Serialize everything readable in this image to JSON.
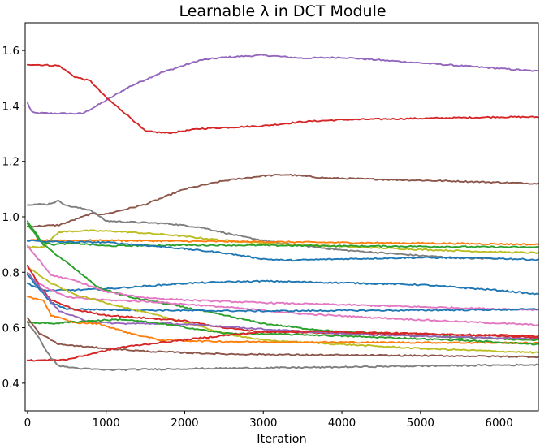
{
  "chart_data": {
    "type": "line",
    "title": "Learnable λ in DCT Module",
    "xlabel": "Iteration",
    "ylabel": "",
    "xlim": [
      -30,
      6500
    ],
    "ylim": [
      0.3,
      1.7
    ],
    "xticks": [
      0,
      1000,
      2000,
      3000,
      4000,
      5000,
      6000
    ],
    "yticks": [
      0.4,
      0.6,
      0.8,
      1.0,
      1.2,
      1.4,
      1.6
    ],
    "ytick_labels": [
      "0.4",
      "0.6",
      "0.8",
      "1.0",
      "1.2",
      "1.4",
      "1.6"
    ],
    "grid": false,
    "legend": "none",
    "series": [
      {
        "name": "purple",
        "color": "#9467bd",
        "points": [
          [
            0,
            1.41
          ],
          [
            60,
            1.375
          ],
          [
            300,
            1.373
          ],
          [
            700,
            1.372
          ],
          [
            1000,
            1.42
          ],
          [
            1300,
            1.47
          ],
          [
            1700,
            1.52
          ],
          [
            2200,
            1.565
          ],
          [
            2500,
            1.575
          ],
          [
            3000,
            1.583
          ],
          [
            3500,
            1.572
          ],
          [
            4000,
            1.575
          ],
          [
            5000,
            1.555
          ],
          [
            6000,
            1.535
          ],
          [
            6500,
            1.525
          ]
        ]
      },
      {
        "name": "red-top",
        "color": "#d62728",
        "points": [
          [
            0,
            1.55
          ],
          [
            400,
            1.545
          ],
          [
            600,
            1.505
          ],
          [
            800,
            1.49
          ],
          [
            1000,
            1.43
          ],
          [
            1300,
            1.36
          ],
          [
            1500,
            1.308
          ],
          [
            1800,
            1.302
          ],
          [
            2200,
            1.318
          ],
          [
            2600,
            1.323
          ],
          [
            3000,
            1.328
          ],
          [
            3500,
            1.343
          ],
          [
            4000,
            1.35
          ],
          [
            5000,
            1.355
          ],
          [
            6000,
            1.36
          ],
          [
            6500,
            1.36
          ]
        ]
      },
      {
        "name": "brown-top",
        "color": "#8c564b",
        "points": [
          [
            0,
            0.965
          ],
          [
            400,
            0.97
          ],
          [
            800,
            1.01
          ],
          [
            1000,
            1.01
          ],
          [
            1500,
            1.045
          ],
          [
            2000,
            1.1
          ],
          [
            2500,
            1.13
          ],
          [
            3000,
            1.148
          ],
          [
            3300,
            1.152
          ],
          [
            3800,
            1.14
          ],
          [
            4500,
            1.135
          ],
          [
            5500,
            1.128
          ],
          [
            6500,
            1.12
          ]
        ]
      },
      {
        "name": "gray-top",
        "color": "#7f7f7f",
        "points": [
          [
            0,
            1.045
          ],
          [
            250,
            1.045
          ],
          [
            400,
            1.058
          ],
          [
            500,
            1.04
          ],
          [
            800,
            1.025
          ],
          [
            1000,
            0.985
          ],
          [
            1400,
            0.98
          ],
          [
            1800,
            0.975
          ],
          [
            2200,
            0.962
          ],
          [
            2700,
            0.93
          ],
          [
            3200,
            0.905
          ],
          [
            4000,
            0.88
          ],
          [
            5000,
            0.86
          ],
          [
            5600,
            0.85
          ],
          [
            6000,
            0.85
          ]
        ]
      },
      {
        "name": "olive",
        "color": "#bcbd22",
        "points": [
          [
            0,
            0.89
          ],
          [
            200,
            0.892
          ],
          [
            400,
            0.945
          ],
          [
            700,
            0.95
          ],
          [
            1100,
            0.948
          ],
          [
            1800,
            0.935
          ],
          [
            2500,
            0.915
          ],
          [
            3000,
            0.905
          ],
          [
            4000,
            0.893
          ],
          [
            5000,
            0.882
          ],
          [
            6000,
            0.873
          ],
          [
            6500,
            0.87
          ]
        ]
      },
      {
        "name": "orange-top",
        "color": "#ff7f0e",
        "points": [
          [
            0,
            0.915
          ],
          [
            300,
            0.915
          ],
          [
            1000,
            0.915
          ],
          [
            2000,
            0.912
          ],
          [
            3000,
            0.91
          ],
          [
            4000,
            0.907
          ],
          [
            5000,
            0.905
          ],
          [
            6000,
            0.902
          ],
          [
            6500,
            0.9
          ]
        ]
      },
      {
        "name": "green-top",
        "color": "#2ca02c",
        "points": [
          [
            0,
            0.975
          ],
          [
            150,
            0.915
          ],
          [
            300,
            0.9
          ],
          [
            600,
            0.905
          ],
          [
            1000,
            0.895
          ],
          [
            2000,
            0.898
          ],
          [
            3000,
            0.897
          ],
          [
            4000,
            0.895
          ],
          [
            5000,
            0.893
          ],
          [
            6000,
            0.891
          ],
          [
            6500,
            0.89
          ]
        ]
      },
      {
        "name": "blue-top",
        "color": "#1f77b4",
        "points": [
          [
            0,
            0.915
          ],
          [
            300,
            0.91
          ],
          [
            1000,
            0.908
          ],
          [
            1800,
            0.89
          ],
          [
            2500,
            0.87
          ],
          [
            3000,
            0.848
          ],
          [
            3300,
            0.843
          ],
          [
            4000,
            0.848
          ],
          [
            5000,
            0.853
          ],
          [
            6000,
            0.85
          ],
          [
            6500,
            0.845
          ]
        ]
      },
      {
        "name": "blue-mid",
        "color": "#1f77b4",
        "points": [
          [
            0,
            0.76
          ],
          [
            200,
            0.735
          ],
          [
            500,
            0.735
          ],
          [
            1000,
            0.74
          ],
          [
            1500,
            0.75
          ],
          [
            2000,
            0.76
          ],
          [
            2500,
            0.765
          ],
          [
            3000,
            0.768
          ],
          [
            4000,
            0.762
          ],
          [
            5000,
            0.755
          ],
          [
            6000,
            0.735
          ],
          [
            6500,
            0.72
          ]
        ]
      },
      {
        "name": "green-decay",
        "color": "#2ca02c",
        "points": [
          [
            0,
            0.985
          ],
          [
            200,
            0.9
          ],
          [
            500,
            0.835
          ],
          [
            900,
            0.745
          ],
          [
            1300,
            0.71
          ],
          [
            1800,
            0.685
          ],
          [
            2500,
            0.645
          ],
          [
            3000,
            0.615
          ],
          [
            3500,
            0.598
          ],
          [
            4000,
            0.585
          ],
          [
            4500,
            0.58
          ],
          [
            5000,
            0.57
          ],
          [
            6000,
            0.56
          ],
          [
            6500,
            0.555
          ]
        ]
      },
      {
        "name": "pink-decay",
        "color": "#e377c2",
        "points": [
          [
            0,
            0.895
          ],
          [
            300,
            0.79
          ],
          [
            600,
            0.77
          ],
          [
            1000,
            0.73
          ],
          [
            1500,
            0.708
          ],
          [
            2000,
            0.7
          ],
          [
            3000,
            0.69
          ],
          [
            4000,
            0.683
          ],
          [
            5000,
            0.675
          ],
          [
            6000,
            0.668
          ],
          [
            6500,
            0.665
          ]
        ]
      },
      {
        "name": "pink-low",
        "color": "#e377c2",
        "points": [
          [
            0,
            0.79
          ],
          [
            200,
            0.75
          ],
          [
            500,
            0.71
          ],
          [
            1000,
            0.7
          ],
          [
            1500,
            0.695
          ],
          [
            2500,
            0.675
          ],
          [
            3500,
            0.65
          ],
          [
            4500,
            0.635
          ],
          [
            5500,
            0.622
          ],
          [
            6500,
            0.61
          ]
        ]
      },
      {
        "name": "blue-flat",
        "color": "#1f77b4",
        "points": [
          [
            0,
            0.79
          ],
          [
            150,
            0.74
          ],
          [
            300,
            0.69
          ],
          [
            500,
            0.668
          ],
          [
            1000,
            0.665
          ],
          [
            2000,
            0.662
          ],
          [
            3000,
            0.66
          ],
          [
            4000,
            0.662
          ],
          [
            5000,
            0.663
          ],
          [
            6000,
            0.665
          ],
          [
            6500,
            0.667
          ]
        ]
      },
      {
        "name": "olive-decay",
        "color": "#bcbd22",
        "points": [
          [
            0,
            0.82
          ],
          [
            300,
            0.76
          ],
          [
            600,
            0.72
          ],
          [
            1000,
            0.69
          ],
          [
            1500,
            0.655
          ],
          [
            2000,
            0.62
          ],
          [
            2500,
            0.58
          ],
          [
            3000,
            0.555
          ],
          [
            4000,
            0.54
          ],
          [
            5000,
            0.525
          ],
          [
            6000,
            0.515
          ],
          [
            6500,
            0.51
          ]
        ]
      },
      {
        "name": "red-mid",
        "color": "#d62728",
        "points": [
          [
            0,
            0.825
          ],
          [
            150,
            0.75
          ],
          [
            300,
            0.7
          ],
          [
            600,
            0.665
          ],
          [
            1000,
            0.645
          ],
          [
            1500,
            0.635
          ],
          [
            2000,
            0.625
          ],
          [
            2500,
            0.6
          ],
          [
            3000,
            0.585
          ],
          [
            3500,
            0.583
          ],
          [
            4000,
            0.58
          ],
          [
            5000,
            0.578
          ],
          [
            6000,
            0.573
          ],
          [
            6500,
            0.57
          ]
        ]
      },
      {
        "name": "purple-low",
        "color": "#9467bd",
        "points": [
          [
            0,
            0.8
          ],
          [
            200,
            0.73
          ],
          [
            400,
            0.66
          ],
          [
            800,
            0.62
          ],
          [
            1200,
            0.615
          ],
          [
            1800,
            0.615
          ],
          [
            2500,
            0.605
          ],
          [
            3000,
            0.595
          ],
          [
            4000,
            0.578
          ],
          [
            5000,
            0.57
          ],
          [
            6000,
            0.563
          ],
          [
            6500,
            0.56
          ]
        ]
      },
      {
        "name": "orange-low",
        "color": "#ff7f0e",
        "points": [
          [
            0,
            0.71
          ],
          [
            200,
            0.7
          ],
          [
            300,
            0.645
          ],
          [
            600,
            0.618
          ],
          [
            900,
            0.615
          ],
          [
            1300,
            0.58
          ],
          [
            1700,
            0.555
          ],
          [
            2500,
            0.55
          ],
          [
            3500,
            0.548
          ],
          [
            4500,
            0.547
          ],
          [
            5500,
            0.546
          ],
          [
            6500,
            0.545
          ]
        ]
      },
      {
        "name": "green-low",
        "color": "#2ca02c",
        "points": [
          [
            0,
            0.62
          ],
          [
            300,
            0.615
          ],
          [
            800,
            0.625
          ],
          [
            1200,
            0.63
          ],
          [
            1700,
            0.615
          ],
          [
            2500,
            0.58
          ],
          [
            3500,
            0.575
          ],
          [
            4500,
            0.565
          ],
          [
            5500,
            0.555
          ],
          [
            6500,
            0.54
          ]
        ]
      },
      {
        "name": "brown-low",
        "color": "#8c564b",
        "points": [
          [
            0,
            0.635
          ],
          [
            150,
            0.58
          ],
          [
            400,
            0.54
          ],
          [
            800,
            0.53
          ],
          [
            1500,
            0.515
          ],
          [
            2500,
            0.505
          ],
          [
            3500,
            0.502
          ],
          [
            4500,
            0.5
          ],
          [
            5500,
            0.498
          ],
          [
            6500,
            0.495
          ]
        ]
      },
      {
        "name": "red-low",
        "color": "#d62728",
        "points": [
          [
            0,
            0.482
          ],
          [
            300,
            0.483
          ],
          [
            500,
            0.485
          ],
          [
            800,
            0.505
          ],
          [
            1200,
            0.53
          ],
          [
            1800,
            0.55
          ],
          [
            2500,
            0.572
          ],
          [
            3000,
            0.585
          ],
          [
            3500,
            0.588
          ],
          [
            4000,
            0.585
          ],
          [
            5000,
            0.578
          ],
          [
            6000,
            0.57
          ],
          [
            6500,
            0.565
          ]
        ]
      },
      {
        "name": "gray-bottom",
        "color": "#7f7f7f",
        "points": [
          [
            0,
            0.62
          ],
          [
            150,
            0.56
          ],
          [
            300,
            0.49
          ],
          [
            400,
            0.462
          ],
          [
            700,
            0.452
          ],
          [
            1000,
            0.448
          ],
          [
            1500,
            0.45
          ],
          [
            2000,
            0.452
          ],
          [
            3000,
            0.455
          ],
          [
            4000,
            0.458
          ],
          [
            5000,
            0.462
          ],
          [
            6000,
            0.465
          ],
          [
            6500,
            0.466
          ]
        ]
      }
    ]
  }
}
